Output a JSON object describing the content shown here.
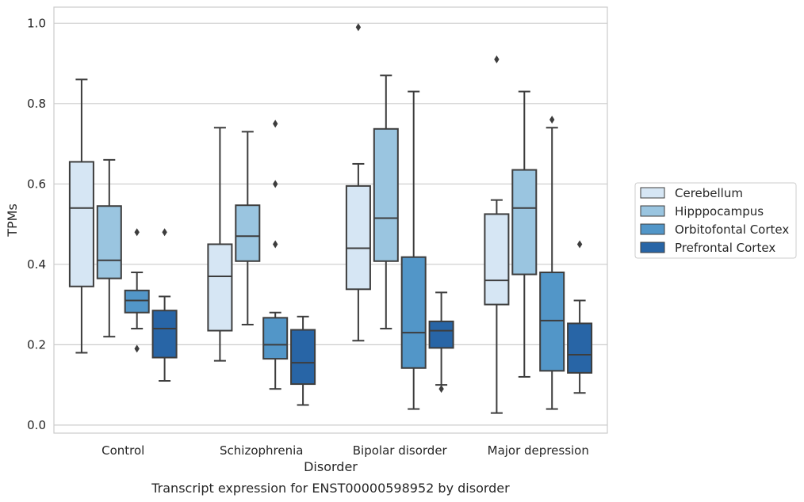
{
  "caption": "Transcript expression for ENST00000598952 by disorder",
  "chart_data": {
    "type": "box",
    "xlabel": "Disorder",
    "ylabel": "TPMs",
    "ylim": [
      -0.02,
      1.04
    ],
    "yticks": [
      "0.0",
      "0.2",
      "0.4",
      "0.6",
      "0.8",
      "1.0"
    ],
    "grid": "horizontal",
    "legend_position": "right",
    "categories": [
      "Control",
      "Schizophrenia",
      "Bipolar disorder",
      "Major depression"
    ],
    "series": [
      {
        "name": "Cerebellum",
        "color": "#d6e6f4",
        "boxes": [
          {
            "whislo": 0.18,
            "q1": 0.345,
            "med": 0.54,
            "q3": 0.655,
            "whishi": 0.86,
            "fliers": []
          },
          {
            "whislo": 0.16,
            "q1": 0.235,
            "med": 0.37,
            "q3": 0.45,
            "whishi": 0.74,
            "fliers": []
          },
          {
            "whislo": 0.21,
            "q1": 0.338,
            "med": 0.44,
            "q3": 0.595,
            "whishi": 0.65,
            "fliers": [
              0.99
            ]
          },
          {
            "whislo": 0.03,
            "q1": 0.3,
            "med": 0.36,
            "q3": 0.525,
            "whishi": 0.56,
            "fliers": [
              0.91
            ]
          }
        ]
      },
      {
        "name": "Hipppocampus",
        "color": "#9ac5e0",
        "boxes": [
          {
            "whislo": 0.22,
            "q1": 0.365,
            "med": 0.41,
            "q3": 0.545,
            "whishi": 0.66,
            "fliers": []
          },
          {
            "whislo": 0.25,
            "q1": 0.408,
            "med": 0.47,
            "q3": 0.547,
            "whishi": 0.73,
            "fliers": []
          },
          {
            "whislo": 0.24,
            "q1": 0.408,
            "med": 0.515,
            "q3": 0.737,
            "whishi": 0.87,
            "fliers": []
          },
          {
            "whislo": 0.12,
            "q1": 0.375,
            "med": 0.54,
            "q3": 0.635,
            "whishi": 0.83,
            "fliers": []
          }
        ]
      },
      {
        "name": "Orbitofontal Cortex",
        "color": "#5296c8",
        "boxes": [
          {
            "whislo": 0.24,
            "q1": 0.28,
            "med": 0.31,
            "q3": 0.335,
            "whishi": 0.38,
            "fliers": [
              0.48,
              0.19
            ]
          },
          {
            "whislo": 0.09,
            "q1": 0.165,
            "med": 0.2,
            "q3": 0.267,
            "whishi": 0.28,
            "fliers": [
              0.75,
              0.6,
              0.45
            ]
          },
          {
            "whislo": 0.04,
            "q1": 0.142,
            "med": 0.23,
            "q3": 0.418,
            "whishi": 0.83,
            "fliers": []
          },
          {
            "whislo": 0.04,
            "q1": 0.135,
            "med": 0.26,
            "q3": 0.38,
            "whishi": 0.74,
            "fliers": [
              0.76
            ]
          }
        ]
      },
      {
        "name": "Prefrontal Cortex",
        "color": "#2865a6",
        "boxes": [
          {
            "whislo": 0.11,
            "q1": 0.168,
            "med": 0.24,
            "q3": 0.285,
            "whishi": 0.32,
            "fliers": [
              0.48
            ]
          },
          {
            "whislo": 0.05,
            "q1": 0.102,
            "med": 0.155,
            "q3": 0.237,
            "whishi": 0.27,
            "fliers": []
          },
          {
            "whislo": 0.1,
            "q1": 0.192,
            "med": 0.235,
            "q3": 0.258,
            "whishi": 0.33,
            "fliers": [
              0.09
            ]
          },
          {
            "whislo": 0.08,
            "q1": 0.13,
            "med": 0.175,
            "q3": 0.253,
            "whishi": 0.31,
            "fliers": [
              0.45
            ]
          }
        ]
      }
    ]
  }
}
